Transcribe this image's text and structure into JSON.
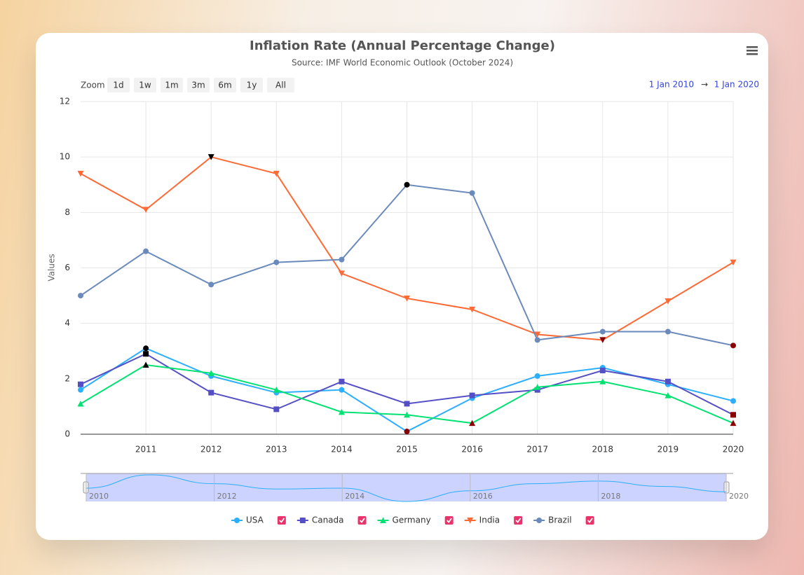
{
  "chart_data": {
    "type": "line",
    "title": "Inflation Rate (Annual Percentage Change)",
    "subtitle": "Source: IMF World Economic Outlook (October 2024)",
    "y_label": "Values",
    "zoom_label": "Zoom",
    "zoom_buttons": [
      "1d",
      "1w",
      "1m",
      "3m",
      "6m",
      "1y",
      "All"
    ],
    "range_from": "1 Jan 2010",
    "range_arrow": "→",
    "range_to": "1 Jan 2020",
    "x": [
      2010,
      2011,
      2012,
      2013,
      2014,
      2015,
      2016,
      2017,
      2018,
      2019,
      2020
    ],
    "xlim": [
      2010,
      2020
    ],
    "xticks": [
      2011,
      2012,
      2013,
      2014,
      2015,
      2016,
      2017,
      2018,
      2019,
      2020
    ],
    "ylim": [
      0,
      12
    ],
    "yticks": [
      0,
      2,
      4,
      6,
      8,
      10,
      12
    ],
    "grid": true,
    "navigator_xticks": [
      2010,
      2012,
      2014,
      2016,
      2018,
      2020
    ],
    "series": [
      {
        "name": "USA",
        "color": "#2caffe",
        "marker": "circle",
        "values": [
          1.6,
          3.1,
          2.1,
          1.5,
          1.6,
          0.1,
          1.3,
          2.1,
          2.4,
          1.8,
          1.2
        ]
      },
      {
        "name": "Canada",
        "color": "#544fc5",
        "marker": "square",
        "values": [
          1.8,
          2.9,
          1.5,
          0.9,
          1.9,
          1.1,
          1.4,
          1.6,
          2.3,
          1.9,
          0.7
        ]
      },
      {
        "name": "Germany",
        "color": "#00e272",
        "marker": "triangle",
        "values": [
          1.1,
          2.5,
          2.2,
          1.6,
          0.8,
          0.7,
          0.4,
          1.7,
          1.9,
          1.4,
          0.4
        ]
      },
      {
        "name": "India",
        "color": "#fe6a35",
        "marker": "triangle-down",
        "values": [
          9.4,
          8.1,
          10.0,
          9.4,
          5.8,
          4.9,
          4.5,
          3.6,
          3.4,
          4.8,
          6.2
        ]
      },
      {
        "name": "Brazil",
        "color": "#6b8abc",
        "marker": "circle",
        "values": [
          5.0,
          6.6,
          5.4,
          6.2,
          6.3,
          9.0,
          8.7,
          3.4,
          3.7,
          3.7,
          3.2
        ]
      }
    ]
  }
}
